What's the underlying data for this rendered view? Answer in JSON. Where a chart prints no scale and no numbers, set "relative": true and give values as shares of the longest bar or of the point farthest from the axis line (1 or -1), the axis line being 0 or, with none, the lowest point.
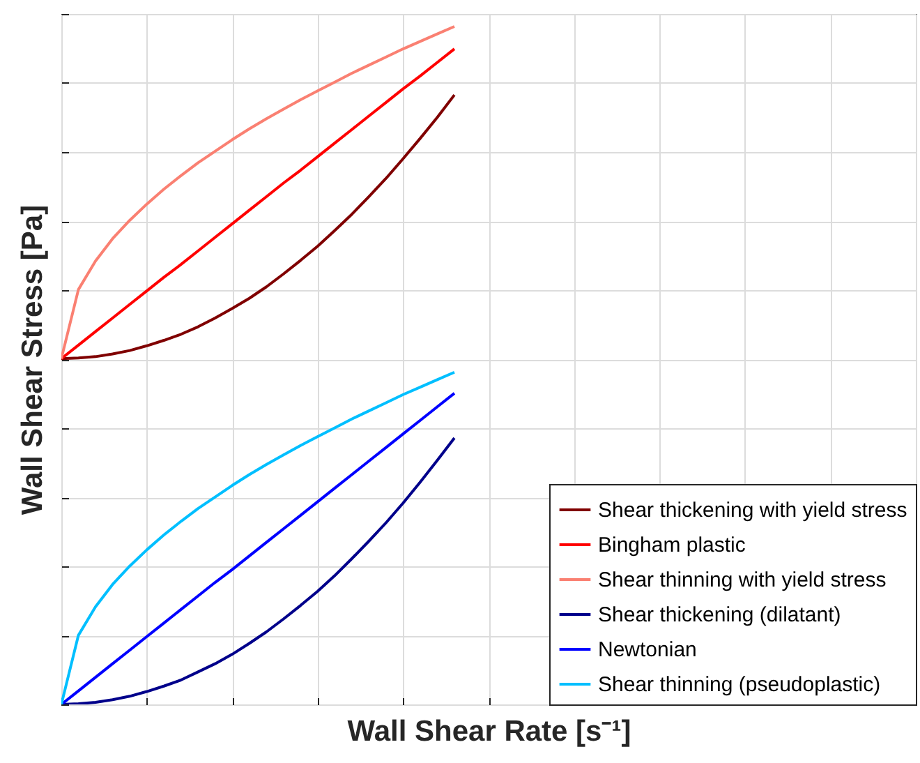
{
  "chart_data": {
    "type": "line",
    "relative": true,
    "xlabel": "Wall Shear Rate [s⁻¹]",
    "ylabel": "Wall Shear Stress [Pa]",
    "grid": true,
    "legend": "bottom right",
    "categories": [
      null,
      null,
      null,
      null,
      null,
      null,
      null,
      null,
      null,
      null,
      null,
      null,
      null,
      null,
      null,
      null,
      null,
      null,
      null,
      null,
      null,
      null,
      null,
      null,
      null,
      null,
      null,
      null,
      null,
      null,
      null,
      null,
      null,
      null,
      null,
      null,
      null,
      null,
      null,
      null,
      null,
      null,
      null,
      null,
      null,
      null,
      null,
      null,
      null,
      null,
      null
    ],
    "series": [
      {
        "name": "Shear thickening with yield stress",
        "color": "#800000",
        "values": [
          0.51,
          0.511,
          0.513,
          0.517,
          0.522,
          0.529,
          0.537,
          0.546,
          0.557,
          0.57,
          0.584,
          0.599,
          0.616,
          0.635,
          0.655,
          0.676,
          0.699,
          0.723,
          0.749,
          0.776,
          0.805,
          0.835,
          0.866,
          0.899,
          null,
          null,
          null,
          null,
          null,
          null,
          null,
          null,
          null,
          null,
          null,
          null,
          null,
          null,
          null,
          null,
          null,
          null,
          null,
          null,
          null,
          null,
          null,
          null,
          null,
          null,
          null
        ]
      },
      {
        "name": "Bingham plastic",
        "color": "#ff0000",
        "values": [
          0.51,
          0.53,
          0.55,
          0.57,
          0.59,
          0.61,
          0.63,
          0.649,
          0.669,
          0.689,
          0.709,
          0.729,
          0.749,
          0.769,
          0.788,
          0.808,
          0.828,
          0.848,
          0.868,
          0.888,
          0.908,
          0.927,
          0.947,
          0.967,
          null,
          null,
          null,
          null,
          null,
          null,
          null,
          null,
          null,
          null,
          null,
          null,
          null,
          null,
          null,
          null,
          null,
          null,
          null,
          null,
          null,
          null,
          null,
          null,
          null,
          null,
          null
        ]
      },
      {
        "name": "Shear thinning with yield stress",
        "color": "#fa8072",
        "values": [
          0.51,
          0.612,
          0.654,
          0.687,
          0.714,
          0.738,
          0.76,
          0.78,
          0.799,
          0.816,
          0.833,
          0.849,
          0.864,
          0.878,
          0.892,
          0.905,
          0.918,
          0.931,
          0.943,
          0.955,
          0.967,
          0.978,
          0.989,
          1.0,
          null,
          null,
          null,
          null,
          null,
          null,
          null,
          null,
          null,
          null,
          null,
          null,
          null,
          null,
          null,
          null,
          null,
          null,
          null,
          null,
          null,
          null,
          null,
          null,
          null,
          null,
          null
        ]
      },
      {
        "name": "Shear thickening (dilatant)",
        "color": "#00008b",
        "values": [
          0,
          0.001,
          0.003,
          0.007,
          0.012,
          0.019,
          0.027,
          0.036,
          0.048,
          0.06,
          0.074,
          0.09,
          0.107,
          0.126,
          0.146,
          0.167,
          0.19,
          0.215,
          0.241,
          0.268,
          0.297,
          0.328,
          0.36,
          0.393,
          null,
          null,
          null,
          null,
          null,
          null,
          null,
          null,
          null,
          null,
          null,
          null,
          null,
          null,
          null,
          null,
          null,
          null,
          null,
          null,
          null,
          null,
          null,
          null,
          null,
          null,
          null
        ]
      },
      {
        "name": "Newtonian",
        "color": "#0000ff",
        "values": [
          0,
          0.02,
          0.04,
          0.06,
          0.08,
          0.1,
          0.12,
          0.14,
          0.16,
          0.18,
          0.199,
          0.219,
          0.239,
          0.259,
          0.279,
          0.299,
          0.319,
          0.339,
          0.359,
          0.379,
          0.399,
          0.419,
          0.439,
          0.459,
          null,
          null,
          null,
          null,
          null,
          null,
          null,
          null,
          null,
          null,
          null,
          null,
          null,
          null,
          null,
          null,
          null,
          null,
          null,
          null,
          null,
          null,
          null,
          null,
          null,
          null,
          null
        ]
      },
      {
        "name": "Shear thinning (pseudoplastic)",
        "color": "#00bfff",
        "values": [
          0,
          0.102,
          0.144,
          0.177,
          0.204,
          0.228,
          0.25,
          0.27,
          0.289,
          0.306,
          0.323,
          0.339,
          0.354,
          0.368,
          0.382,
          0.395,
          0.408,
          0.421,
          0.433,
          0.445,
          0.457,
          0.468,
          0.479,
          0.49,
          null,
          null,
          null,
          null,
          null,
          null,
          null,
          null,
          null,
          null,
          null,
          null,
          null,
          null,
          null,
          null,
          null,
          null,
          null,
          null,
          null,
          null,
          null,
          null,
          null,
          null,
          null
        ]
      }
    ]
  }
}
